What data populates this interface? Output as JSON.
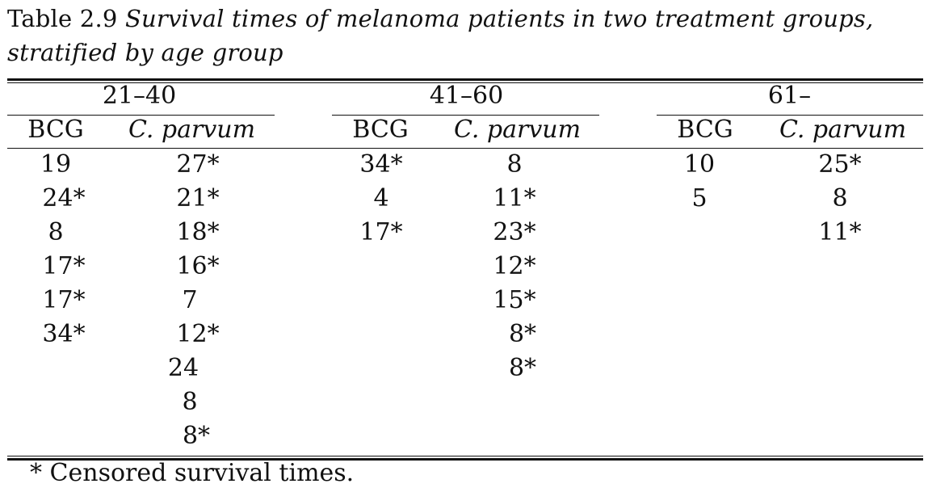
{
  "caption": {
    "label": "Table 2.9",
    "title": "Survival times of melanoma patients in two treatment groups, stratified by age group"
  },
  "age_groups": [
    "21–40",
    "41–60",
    "61–"
  ],
  "treatments": [
    "BCG",
    "C. parvum"
  ],
  "groups": [
    {
      "age": "21–40",
      "bcg": [
        "19",
        "24*",
        "8",
        "17*",
        "17*",
        "34*"
      ],
      "cparvum": [
        "27*",
        "21*",
        "18*",
        "16*",
        "7",
        "12*",
        "24",
        "8",
        "8*"
      ]
    },
    {
      "age": "41–60",
      "bcg": [
        "34*",
        "4",
        "17*"
      ],
      "cparvum": [
        "8",
        "11*",
        "23*",
        "12*",
        "15*",
        "8*",
        "8*"
      ]
    },
    {
      "age": "61–",
      "bcg": [
        "10",
        "5"
      ],
      "cparvum": [
        "25*",
        "8",
        "11*"
      ]
    }
  ],
  "footnote": "* Censored survival times."
}
